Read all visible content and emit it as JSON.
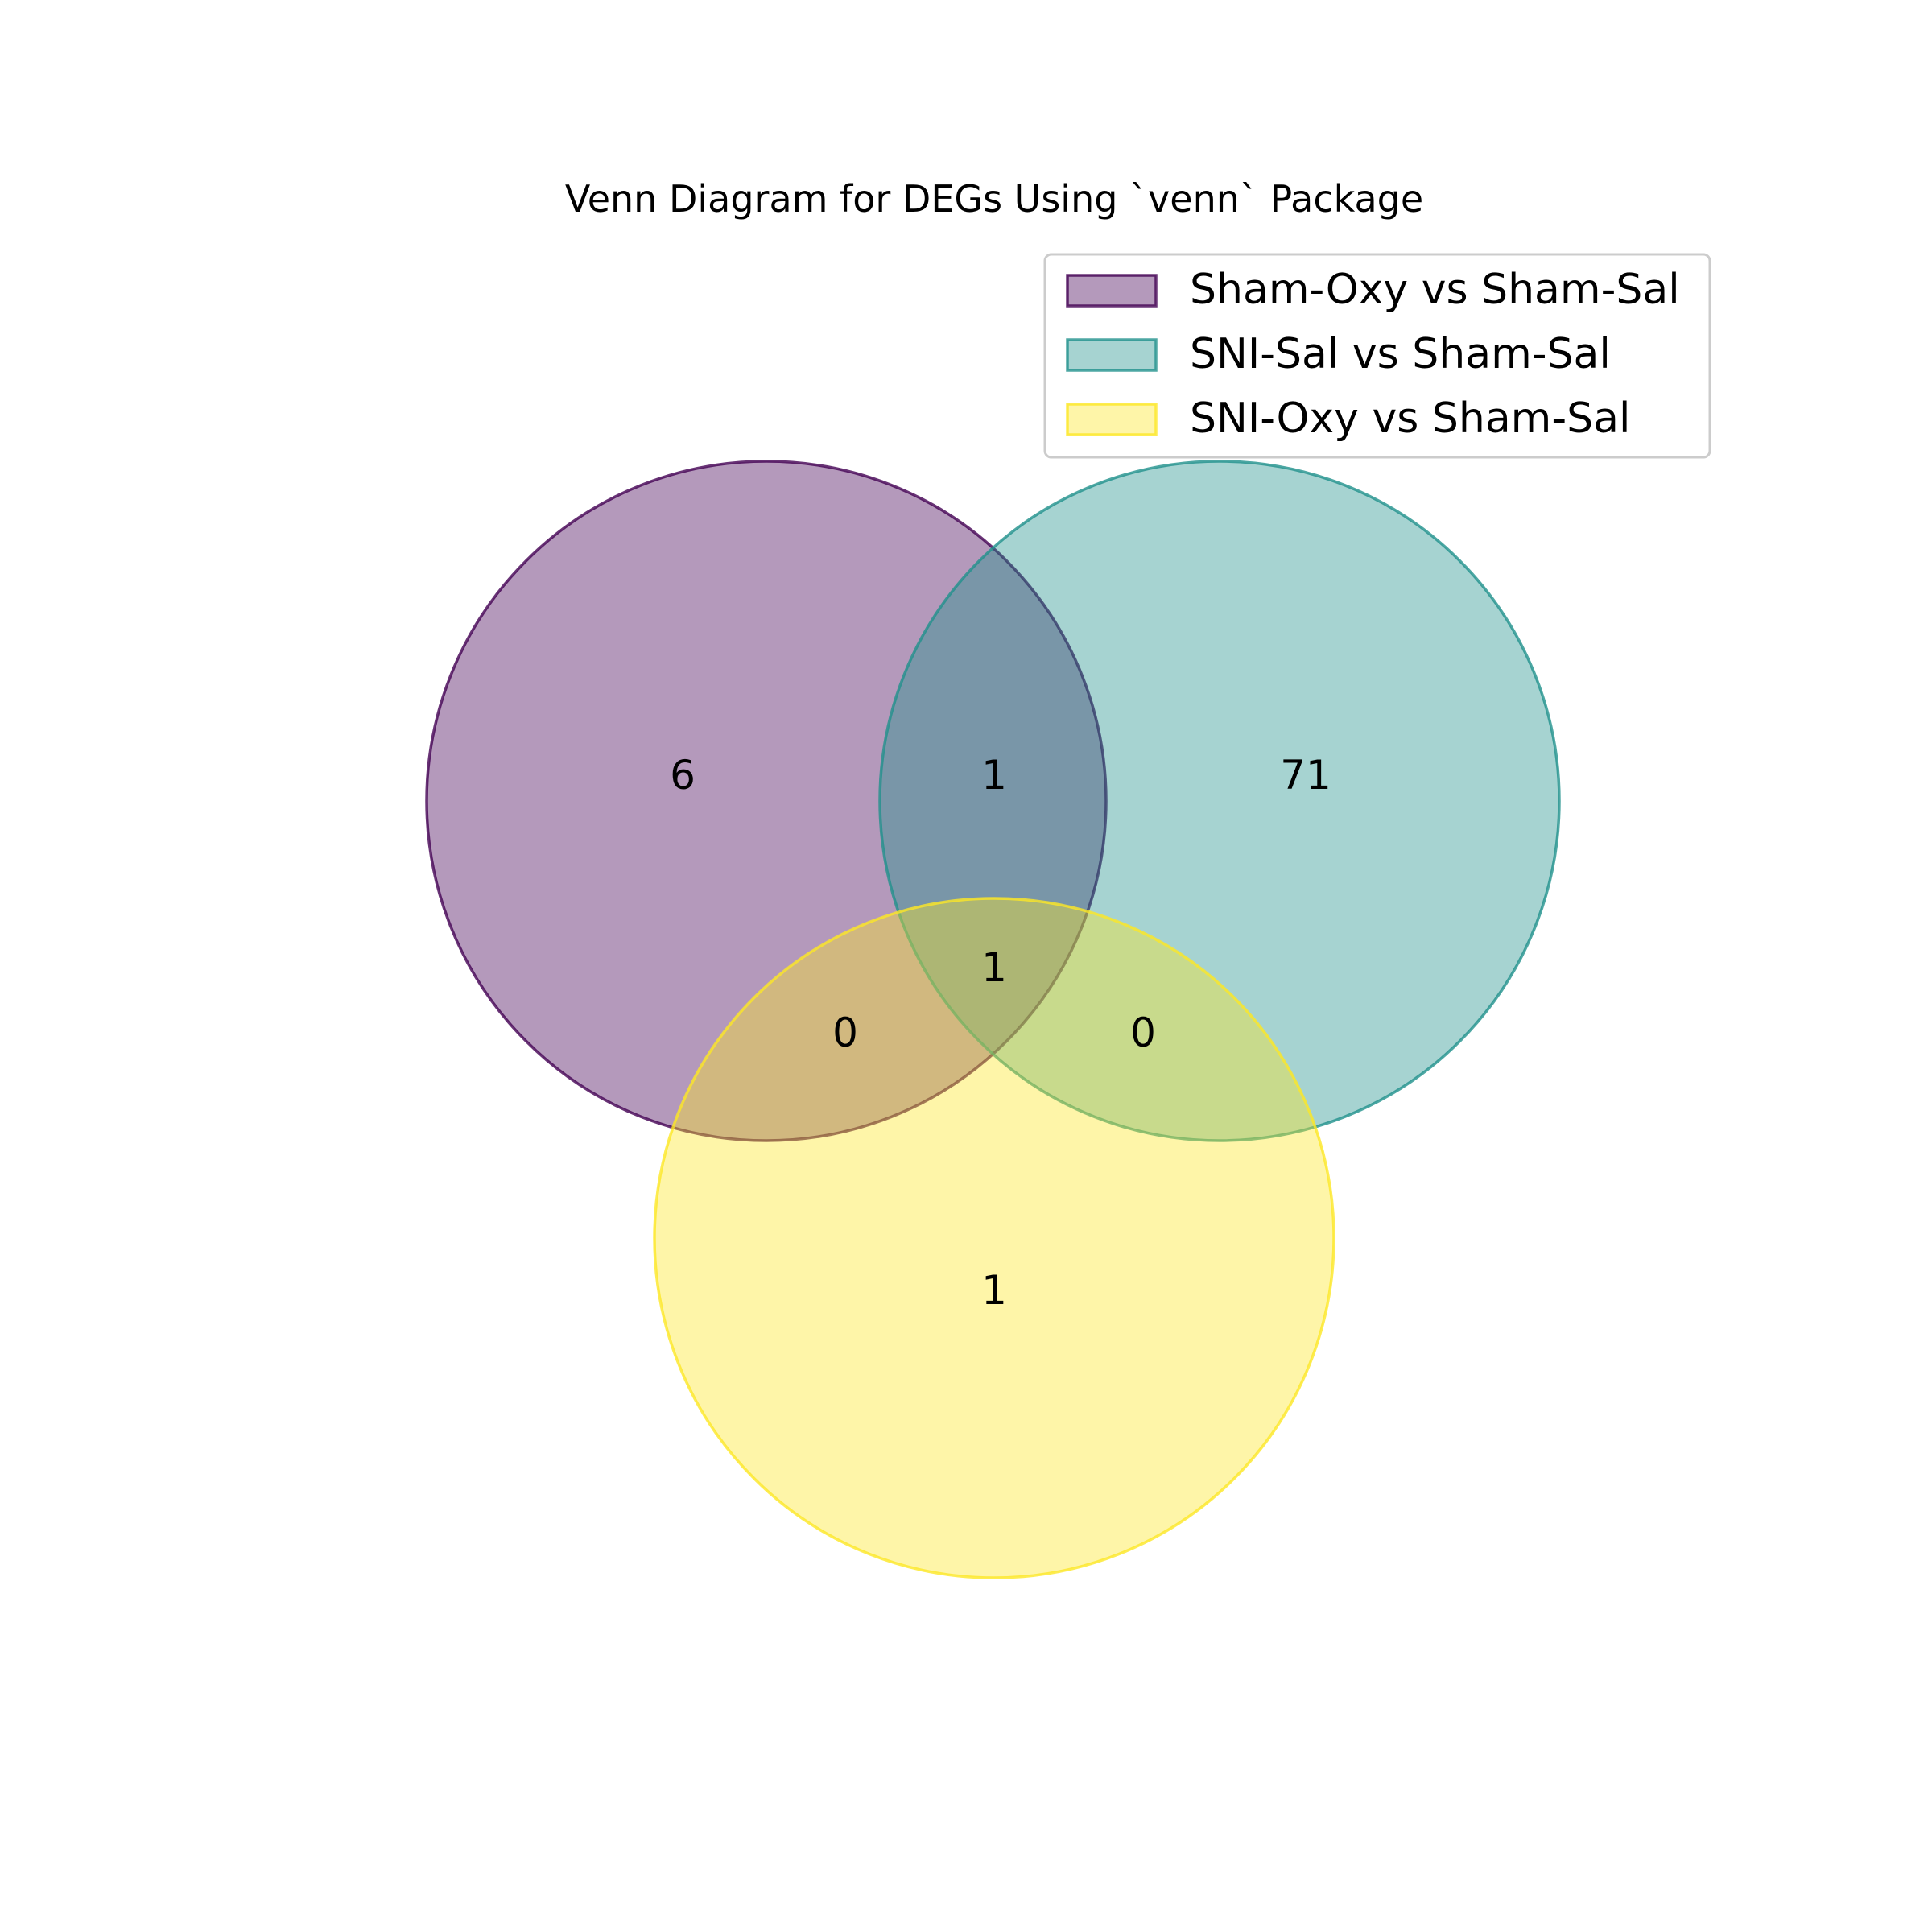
{
  "chart_data": {
    "type": "venn",
    "title": "Venn Diagram for DEGs Using `venn` Package",
    "sets": [
      {
        "key": "A",
        "name": "Sham-Oxy vs Sham-Sal",
        "color": "#440154"
      },
      {
        "key": "B",
        "name": "SNI-Sal vs Sham-Sal",
        "color": "#21918c"
      },
      {
        "key": "C",
        "name": "SNI-Oxy vs Sham-Sal",
        "color": "#fde725"
      }
    ],
    "fill_opacity": 0.4,
    "regions": [
      {
        "key": "A_only",
        "sets": [
          "A"
        ],
        "value": "6"
      },
      {
        "key": "AB",
        "sets": [
          "A",
          "B"
        ],
        "value": "1"
      },
      {
        "key": "B_only",
        "sets": [
          "B"
        ],
        "value": "71"
      },
      {
        "key": "ABC",
        "sets": [
          "A",
          "B",
          "C"
        ],
        "value": "1"
      },
      {
        "key": "AC",
        "sets": [
          "A",
          "C"
        ],
        "value": "0"
      },
      {
        "key": "BC",
        "sets": [
          "B",
          "C"
        ],
        "value": "0"
      },
      {
        "key": "C_only",
        "sets": [
          "C"
        ],
        "value": "1"
      }
    ],
    "legend_position": "upper right"
  }
}
